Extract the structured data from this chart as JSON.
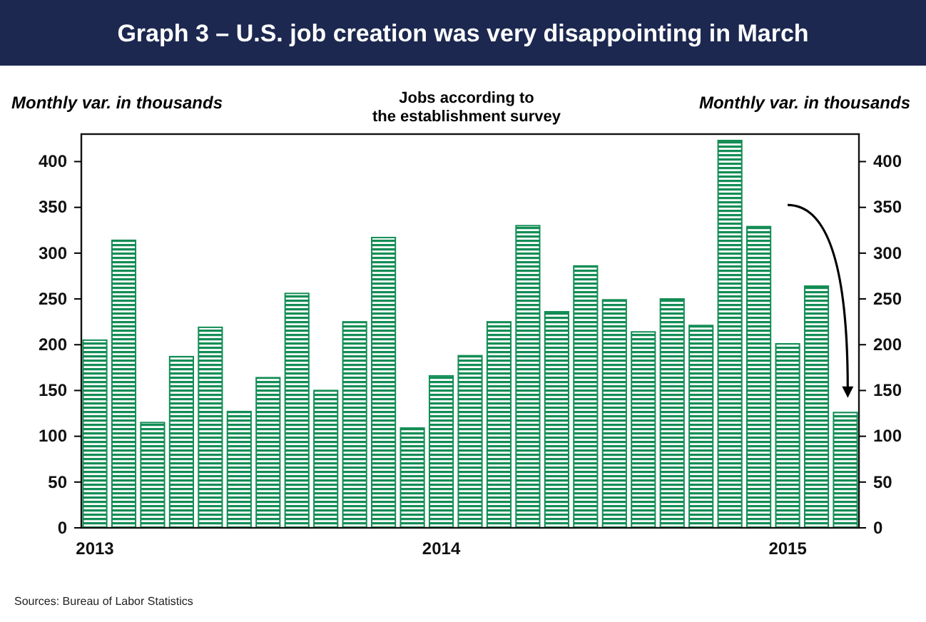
{
  "chart_data": {
    "type": "bar",
    "title": "Graph 3 – U.S. job creation was very disappointing in March",
    "subtitle": "Jobs according to\nthe establishment survey",
    "ylabel": "Monthly var. in thousands",
    "y2label": "Monthly var. in thousands",
    "categories": [
      "2013",
      null,
      null,
      null,
      null,
      null,
      null,
      null,
      null,
      null,
      null,
      null,
      "2014",
      null,
      null,
      null,
      null,
      null,
      null,
      null,
      null,
      null,
      null,
      null,
      "2015",
      null,
      null
    ],
    "values": [
      205,
      314,
      115,
      187,
      219,
      127,
      164,
      256,
      150,
      225,
      317,
      109,
      166,
      188,
      225,
      330,
      236,
      286,
      249,
      214,
      250,
      221,
      423,
      329,
      201,
      264,
      126
    ],
    "color": "#138d55",
    "ylim": [
      0,
      430
    ],
    "yticks": [
      0,
      50,
      100,
      150,
      200,
      250,
      300,
      350,
      400
    ],
    "y2lim": [
      0,
      430
    ],
    "y2ticks": [
      0,
      50,
      100,
      150,
      200,
      250,
      300,
      350,
      400
    ],
    "grid": false,
    "annotations": [
      "Sources: Bureau of Labor Statistics"
    ]
  }
}
